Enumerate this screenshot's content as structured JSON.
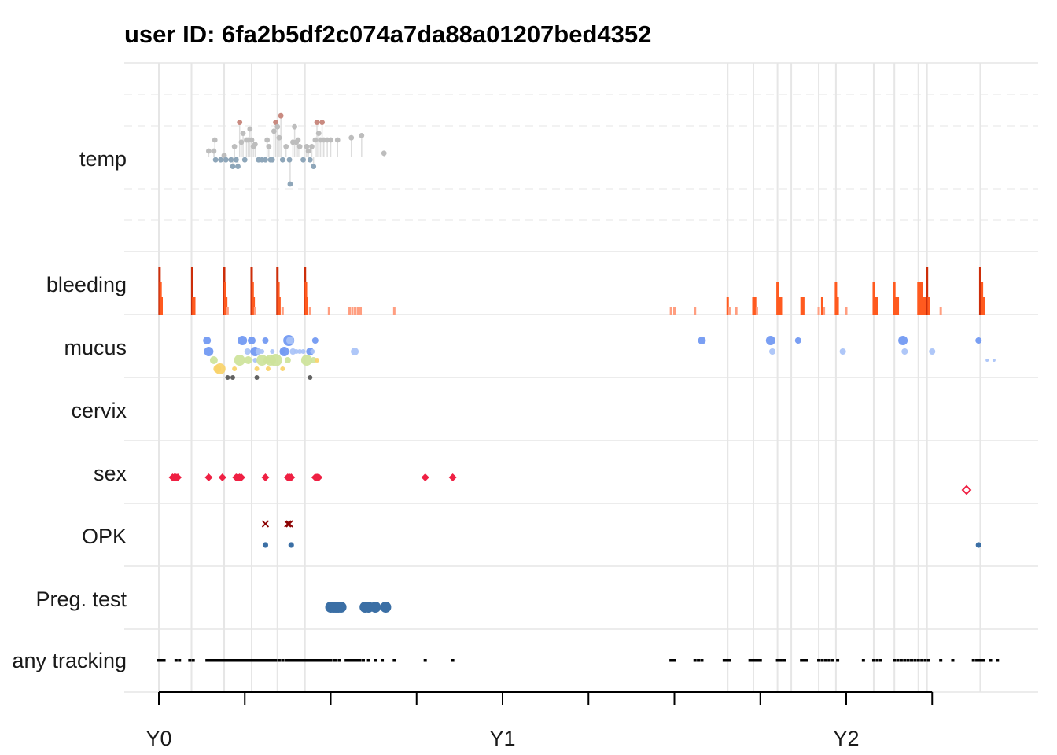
{
  "chart_data": {
    "type": "timeline",
    "title": "user ID:  6fa2b5df2c074a7da88a01207bed4352",
    "rows": [
      "temp",
      "bleeding",
      "mucus",
      "cervix",
      "sex",
      "OPK",
      "Preg. test",
      "any tracking"
    ],
    "x_axis": {
      "unit": "years",
      "range": [
        -0.1,
        2.6
      ],
      "ticks": [
        {
          "value": 0,
          "label": "Y0"
        },
        {
          "value": 1,
          "label": "Y1"
        },
        {
          "value": 2,
          "label": "Y2"
        }
      ],
      "minor_ticks": [
        0.25,
        0.5,
        0.75,
        1.25,
        1.5,
        1.75,
        2.25
      ]
    },
    "cycle_starts": [
      0.0,
      0.095,
      0.19,
      0.27,
      0.345,
      0.425,
      1.655,
      1.73,
      1.8,
      1.84,
      1.92,
      1.97,
      2.08,
      2.14,
      2.21,
      2.235,
      2.39
    ],
    "colors": {
      "grid": "#e6e6e6",
      "temp_high": "#c98a80",
      "temp_mid": "#bdbdbd",
      "temp_low": "#8ea6b9",
      "bleeding_heavy": "#cc2e0a",
      "bleeding_medium": "#ff5a1f",
      "bleeding_spot": "#ff9e80",
      "mucus_blue": "#6f97f2",
      "mucus_lightblue": "#a8c2f7",
      "mucus_green": "#cde39a",
      "mucus_yellow": "#f9d36a",
      "mucus_gray": "#555555",
      "sex": "#ef2043",
      "opk_x": "#8b0000",
      "opk_dot": "#3b6fa5",
      "preg": "#3b6fa5",
      "tracking": "#000000"
    },
    "temp": [
      {
        "x": 0.145,
        "level": 0.0,
        "tier": "mid"
      },
      {
        "x": 0.16,
        "level": 0.0,
        "tier": "mid"
      },
      {
        "x": 0.163,
        "level": 0.5,
        "tier": "mid"
      },
      {
        "x": 0.165,
        "level": -0.4,
        "tier": "low"
      },
      {
        "x": 0.18,
        "level": -0.4,
        "tier": "low"
      },
      {
        "x": 0.19,
        "level": -0.2,
        "tier": "mid"
      },
      {
        "x": 0.195,
        "level": -0.4,
        "tier": "low"
      },
      {
        "x": 0.21,
        "level": -0.4,
        "tier": "low"
      },
      {
        "x": 0.215,
        "level": -0.7,
        "tier": "low"
      },
      {
        "x": 0.22,
        "level": 0.2,
        "tier": "mid"
      },
      {
        "x": 0.225,
        "level": -0.4,
        "tier": "low"
      },
      {
        "x": 0.23,
        "level": -0.7,
        "tier": "low"
      },
      {
        "x": 0.235,
        "level": 1.3,
        "tier": "high"
      },
      {
        "x": 0.24,
        "level": 0.4,
        "tier": "mid"
      },
      {
        "x": 0.245,
        "level": 0.8,
        "tier": "mid"
      },
      {
        "x": 0.25,
        "level": -0.4,
        "tier": "low"
      },
      {
        "x": 0.255,
        "level": 0.5,
        "tier": "mid"
      },
      {
        "x": 0.26,
        "level": 0.5,
        "tier": "mid"
      },
      {
        "x": 0.265,
        "level": 1.0,
        "tier": "mid"
      },
      {
        "x": 0.27,
        "level": 0.5,
        "tier": "mid"
      },
      {
        "x": 0.275,
        "level": 0.2,
        "tier": "mid"
      },
      {
        "x": 0.28,
        "level": 0.3,
        "tier": "mid"
      },
      {
        "x": 0.29,
        "level": -0.4,
        "tier": "low"
      },
      {
        "x": 0.3,
        "level": -0.4,
        "tier": "low"
      },
      {
        "x": 0.31,
        "level": -0.4,
        "tier": "low"
      },
      {
        "x": 0.315,
        "level": 0.5,
        "tier": "mid"
      },
      {
        "x": 0.32,
        "level": 0.2,
        "tier": "mid"
      },
      {
        "x": 0.325,
        "level": -0.4,
        "tier": "low"
      },
      {
        "x": 0.33,
        "level": -0.4,
        "tier": "low"
      },
      {
        "x": 0.335,
        "level": 0.9,
        "tier": "mid"
      },
      {
        "x": 0.34,
        "level": 1.3,
        "tier": "high"
      },
      {
        "x": 0.345,
        "level": 1.1,
        "tier": "mid"
      },
      {
        "x": 0.35,
        "level": 0.6,
        "tier": "mid"
      },
      {
        "x": 0.355,
        "level": 1.6,
        "tier": "high"
      },
      {
        "x": 0.36,
        "level": -0.4,
        "tier": "low"
      },
      {
        "x": 0.37,
        "level": 0.2,
        "tier": "mid"
      },
      {
        "x": 0.38,
        "level": -0.4,
        "tier": "low"
      },
      {
        "x": 0.382,
        "level": -1.5,
        "tier": "low"
      },
      {
        "x": 0.39,
        "level": 0.4,
        "tier": "mid"
      },
      {
        "x": 0.395,
        "level": 1.1,
        "tier": "mid"
      },
      {
        "x": 0.4,
        "level": 0.4,
        "tier": "mid"
      },
      {
        "x": 0.405,
        "level": 0.5,
        "tier": "mid"
      },
      {
        "x": 0.41,
        "level": 0.2,
        "tier": "mid"
      },
      {
        "x": 0.42,
        "level": -0.4,
        "tier": "low"
      },
      {
        "x": 0.43,
        "level": 0.2,
        "tier": "mid"
      },
      {
        "x": 0.435,
        "level": 0.0,
        "tier": "mid"
      },
      {
        "x": 0.44,
        "level": -0.4,
        "tier": "low"
      },
      {
        "x": 0.445,
        "level": 0.2,
        "tier": "mid"
      },
      {
        "x": 0.45,
        "level": -0.7,
        "tier": "low"
      },
      {
        "x": 0.455,
        "level": 0.5,
        "tier": "mid"
      },
      {
        "x": 0.46,
        "level": 1.3,
        "tier": "high"
      },
      {
        "x": 0.465,
        "level": 0.8,
        "tier": "mid"
      },
      {
        "x": 0.47,
        "level": 0.5,
        "tier": "mid"
      },
      {
        "x": 0.475,
        "level": 1.3,
        "tier": "high"
      },
      {
        "x": 0.48,
        "level": 0.5,
        "tier": "mid"
      },
      {
        "x": 0.49,
        "level": 0.5,
        "tier": "mid"
      },
      {
        "x": 0.5,
        "level": 0.5,
        "tier": "mid"
      },
      {
        "x": 0.52,
        "level": 0.5,
        "tier": "mid"
      },
      {
        "x": 0.56,
        "level": 0.6,
        "tier": "mid"
      },
      {
        "x": 0.59,
        "level": 0.7,
        "tier": "mid"
      },
      {
        "x": 0.655,
        "level": -0.1,
        "tier": "mid"
      }
    ],
    "bleeding": [
      {
        "x": 0.002,
        "level": 3
      },
      {
        "x": 0.005,
        "level": 2
      },
      {
        "x": 0.008,
        "level": 1
      },
      {
        "x": 0.097,
        "level": 3
      },
      {
        "x": 0.1,
        "level": 1
      },
      {
        "x": 0.103,
        "level": 1
      },
      {
        "x": 0.19,
        "level": 3
      },
      {
        "x": 0.193,
        "level": 2
      },
      {
        "x": 0.196,
        "level": 1
      },
      {
        "x": 0.2,
        "level": 0
      },
      {
        "x": 0.27,
        "level": 3
      },
      {
        "x": 0.273,
        "level": 2
      },
      {
        "x": 0.276,
        "level": 1
      },
      {
        "x": 0.28,
        "level": 0
      },
      {
        "x": 0.345,
        "level": 3
      },
      {
        "x": 0.348,
        "level": 2
      },
      {
        "x": 0.351,
        "level": 1
      },
      {
        "x": 0.36,
        "level": 0
      },
      {
        "x": 0.425,
        "level": 3
      },
      {
        "x": 0.428,
        "level": 2
      },
      {
        "x": 0.431,
        "level": 1
      },
      {
        "x": 0.44,
        "level": 0
      },
      {
        "x": 0.495,
        "level": 0
      },
      {
        "x": 0.555,
        "level": 0
      },
      {
        "x": 0.563,
        "level": 0
      },
      {
        "x": 0.571,
        "level": 0
      },
      {
        "x": 0.579,
        "level": 0
      },
      {
        "x": 0.587,
        "level": 0
      },
      {
        "x": 0.685,
        "level": 0
      },
      {
        "x": 1.49,
        "level": 0
      },
      {
        "x": 1.5,
        "level": 0
      },
      {
        "x": 1.56,
        "level": 0
      },
      {
        "x": 1.655,
        "level": 1
      },
      {
        "x": 1.66,
        "level": 0
      },
      {
        "x": 1.68,
        "level": 0
      },
      {
        "x": 1.73,
        "level": 1
      },
      {
        "x": 1.735,
        "level": 1
      },
      {
        "x": 1.74,
        "level": 0
      },
      {
        "x": 1.8,
        "level": 2
      },
      {
        "x": 1.805,
        "level": 1
      },
      {
        "x": 1.81,
        "level": 1
      },
      {
        "x": 1.87,
        "level": 1
      },
      {
        "x": 1.875,
        "level": 1
      },
      {
        "x": 1.92,
        "level": 0
      },
      {
        "x": 1.93,
        "level": 1
      },
      {
        "x": 1.935,
        "level": 0
      },
      {
        "x": 1.97,
        "level": 2
      },
      {
        "x": 1.975,
        "level": 1
      },
      {
        "x": 2.0,
        "level": 0
      },
      {
        "x": 2.08,
        "level": 2
      },
      {
        "x": 2.085,
        "level": 1
      },
      {
        "x": 2.09,
        "level": 1
      },
      {
        "x": 2.14,
        "level": 2
      },
      {
        "x": 2.145,
        "level": 1
      },
      {
        "x": 2.15,
        "level": 1
      },
      {
        "x": 2.21,
        "level": 2
      },
      {
        "x": 2.215,
        "level": 2
      },
      {
        "x": 2.22,
        "level": 2
      },
      {
        "x": 2.225,
        "level": 1
      },
      {
        "x": 2.23,
        "level": 1
      },
      {
        "x": 2.235,
        "level": 3
      },
      {
        "x": 2.24,
        "level": 1
      },
      {
        "x": 2.275,
        "level": 0
      },
      {
        "x": 2.39,
        "level": 3
      },
      {
        "x": 2.395,
        "level": 2
      },
      {
        "x": 2.4,
        "level": 1
      }
    ],
    "mucus": [
      {
        "x": 0.145,
        "slot": 1,
        "size": 6,
        "kind": "blue"
      },
      {
        "x": 0.14,
        "slot": 0,
        "size": 5,
        "kind": "blue"
      },
      {
        "x": 0.16,
        "slot": 2,
        "size": 5,
        "kind": "green"
      },
      {
        "x": 0.17,
        "slot": 3,
        "size": 5,
        "kind": "yellow"
      },
      {
        "x": 0.178,
        "slot": 3,
        "size": 7,
        "kind": "yellow"
      },
      {
        "x": 0.2,
        "slot": 4,
        "size": 3,
        "kind": "gray"
      },
      {
        "x": 0.215,
        "slot": 4,
        "size": 3,
        "kind": "gray"
      },
      {
        "x": 0.22,
        "slot": 3,
        "size": 3,
        "kind": "yellow"
      },
      {
        "x": 0.235,
        "slot": 2,
        "size": 7,
        "kind": "green"
      },
      {
        "x": 0.243,
        "slot": 0,
        "size": 6,
        "kind": "blue"
      },
      {
        "x": 0.258,
        "slot": 1,
        "size": 4,
        "kind": "lightblue"
      },
      {
        "x": 0.27,
        "slot": 0,
        "size": 5,
        "kind": "blue"
      },
      {
        "x": 0.28,
        "slot": 1,
        "size": 6,
        "kind": "blue"
      },
      {
        "x": 0.28,
        "slot": 2,
        "size": 3,
        "kind": "lightblue"
      },
      {
        "x": 0.26,
        "slot": 2,
        "size": 5,
        "kind": "green"
      },
      {
        "x": 0.29,
        "slot": 1,
        "size": 4,
        "kind": "lightblue"
      },
      {
        "x": 0.3,
        "slot": 1,
        "size": 3,
        "kind": "lightblue"
      },
      {
        "x": 0.3,
        "slot": 2,
        "size": 7,
        "kind": "green"
      },
      {
        "x": 0.285,
        "slot": 3,
        "size": 3,
        "kind": "yellow"
      },
      {
        "x": 0.285,
        "slot": 4,
        "size": 3,
        "kind": "gray"
      },
      {
        "x": 0.315,
        "slot": 2,
        "size": 5,
        "kind": "green"
      },
      {
        "x": 0.325,
        "slot": 2,
        "size": 7,
        "kind": "green"
      },
      {
        "x": 0.33,
        "slot": 1,
        "size": 3,
        "kind": "lightblue"
      },
      {
        "x": 0.318,
        "slot": 3,
        "size": 3,
        "kind": "yellow"
      },
      {
        "x": 0.34,
        "slot": 2,
        "size": 8,
        "kind": "green"
      },
      {
        "x": 0.31,
        "slot": 0,
        "size": 4,
        "kind": "blue"
      },
      {
        "x": 0.36,
        "slot": 1,
        "size": 3,
        "kind": "lightblue"
      },
      {
        "x": 0.365,
        "slot": 1,
        "size": 6,
        "kind": "blue"
      },
      {
        "x": 0.378,
        "slot": 0,
        "size": 7,
        "kind": "blue"
      },
      {
        "x": 0.382,
        "slot": 0,
        "size": 5,
        "kind": "lightblue"
      },
      {
        "x": 0.375,
        "slot": 2,
        "size": 4,
        "kind": "green"
      },
      {
        "x": 0.36,
        "slot": 3,
        "size": 3,
        "kind": "yellow"
      },
      {
        "x": 0.39,
        "slot": 1,
        "size": 4,
        "kind": "lightblue"
      },
      {
        "x": 0.4,
        "slot": 1,
        "size": 3,
        "kind": "lightblue"
      },
      {
        "x": 0.41,
        "slot": 1,
        "size": 3,
        "kind": "lightblue"
      },
      {
        "x": 0.42,
        "slot": 1,
        "size": 3,
        "kind": "lightblue"
      },
      {
        "x": 0.44,
        "slot": 1,
        "size": 5,
        "kind": "blue"
      },
      {
        "x": 0.447,
        "slot": 1,
        "size": 3,
        "kind": "lightblue"
      },
      {
        "x": 0.455,
        "slot": 0,
        "size": 4,
        "kind": "blue"
      },
      {
        "x": 0.43,
        "slot": 2,
        "size": 7,
        "kind": "green"
      },
      {
        "x": 0.45,
        "slot": 2,
        "size": 4,
        "kind": "green"
      },
      {
        "x": 0.46,
        "slot": 2,
        "size": 3,
        "kind": "yellow"
      },
      {
        "x": 0.44,
        "slot": 4,
        "size": 3,
        "kind": "gray"
      },
      {
        "x": 0.57,
        "slot": 1,
        "size": 5,
        "kind": "lightblue"
      },
      {
        "x": 1.58,
        "slot": 0,
        "size": 5,
        "kind": "blue"
      },
      {
        "x": 1.78,
        "slot": 0,
        "size": 6,
        "kind": "blue"
      },
      {
        "x": 1.785,
        "slot": 1,
        "size": 4,
        "kind": "lightblue"
      },
      {
        "x": 1.86,
        "slot": 0,
        "size": 4,
        "kind": "blue"
      },
      {
        "x": 1.99,
        "slot": 1,
        "size": 4,
        "kind": "lightblue"
      },
      {
        "x": 2.165,
        "slot": 0,
        "size": 6,
        "kind": "blue"
      },
      {
        "x": 2.17,
        "slot": 1,
        "size": 4,
        "kind": "lightblue"
      },
      {
        "x": 2.25,
        "slot": 1,
        "size": 4,
        "kind": "lightblue"
      },
      {
        "x": 2.385,
        "slot": 0,
        "size": 4,
        "kind": "blue"
      },
      {
        "x": 2.41,
        "slot": 2,
        "size": 2,
        "kind": "lightblue"
      },
      {
        "x": 2.43,
        "slot": 2,
        "size": 2,
        "kind": "lightblue"
      }
    ],
    "sex": [
      {
        "x": 0.04,
        "filled": true
      },
      {
        "x": 0.045,
        "filled": true
      },
      {
        "x": 0.05,
        "filled": true
      },
      {
        "x": 0.055,
        "filled": true
      },
      {
        "x": 0.145,
        "filled": true
      },
      {
        "x": 0.185,
        "filled": true
      },
      {
        "x": 0.225,
        "filled": true
      },
      {
        "x": 0.23,
        "filled": true
      },
      {
        "x": 0.235,
        "filled": true
      },
      {
        "x": 0.24,
        "filled": true
      },
      {
        "x": 0.31,
        "filled": true
      },
      {
        "x": 0.375,
        "filled": true
      },
      {
        "x": 0.38,
        "filled": true
      },
      {
        "x": 0.385,
        "filled": true
      },
      {
        "x": 0.455,
        "filled": true
      },
      {
        "x": 0.46,
        "filled": true
      },
      {
        "x": 0.465,
        "filled": true
      },
      {
        "x": 0.775,
        "filled": true
      },
      {
        "x": 0.855,
        "filled": true
      },
      {
        "x": 2.35,
        "filled": false
      }
    ],
    "opk": [
      {
        "x": 0.31,
        "mark": "x"
      },
      {
        "x": 0.375,
        "mark": "x"
      },
      {
        "x": 0.38,
        "mark": "x"
      },
      {
        "x": 0.31,
        "mark": "dot"
      },
      {
        "x": 0.385,
        "mark": "dot"
      },
      {
        "x": 2.385,
        "mark": "dot"
      }
    ],
    "preg_test": [
      0.5,
      0.508,
      0.515,
      0.522,
      0.53,
      0.6,
      0.61,
      0.63,
      0.66
    ],
    "any_tracking": [
      0.0,
      0.005,
      0.01,
      0.015,
      0.05,
      0.06,
      0.09,
      0.1,
      0.14,
      0.145,
      0.15,
      0.155,
      0.16,
      0.165,
      0.17,
      0.175,
      0.18,
      0.185,
      0.19,
      0.195,
      0.2,
      0.205,
      0.21,
      0.215,
      0.22,
      0.225,
      0.23,
      0.235,
      0.24,
      0.245,
      0.25,
      0.255,
      0.26,
      0.265,
      0.27,
      0.275,
      0.28,
      0.285,
      0.29,
      0.295,
      0.3,
      0.305,
      0.31,
      0.315,
      0.32,
      0.325,
      0.33,
      0.34,
      0.35,
      0.36,
      0.37,
      0.375,
      0.38,
      0.385,
      0.39,
      0.395,
      0.4,
      0.405,
      0.41,
      0.415,
      0.42,
      0.425,
      0.43,
      0.435,
      0.44,
      0.445,
      0.45,
      0.455,
      0.46,
      0.465,
      0.47,
      0.475,
      0.48,
      0.485,
      0.49,
      0.495,
      0.5,
      0.51,
      0.515,
      0.525,
      0.545,
      0.55,
      0.555,
      0.56,
      0.565,
      0.57,
      0.575,
      0.58,
      0.585,
      0.595,
      0.61,
      0.63,
      0.65,
      0.685,
      0.775,
      0.855,
      1.49,
      1.495,
      1.5,
      1.56,
      1.57,
      1.58,
      1.645,
      1.65,
      1.655,
      1.66,
      1.72,
      1.725,
      1.73,
      1.735,
      1.74,
      1.745,
      1.75,
      1.8,
      1.805,
      1.81,
      1.82,
      1.87,
      1.875,
      1.885,
      1.92,
      1.93,
      1.94,
      1.95,
      1.96,
      1.975,
      2.05,
      2.08,
      2.09,
      2.1,
      2.14,
      2.15,
      2.16,
      2.17,
      2.18,
      2.19,
      2.2,
      2.21,
      2.22,
      2.23,
      2.24,
      2.275,
      2.31,
      2.37,
      2.38,
      2.385,
      2.39,
      2.395,
      2.4,
      2.42,
      2.44
    ]
  }
}
